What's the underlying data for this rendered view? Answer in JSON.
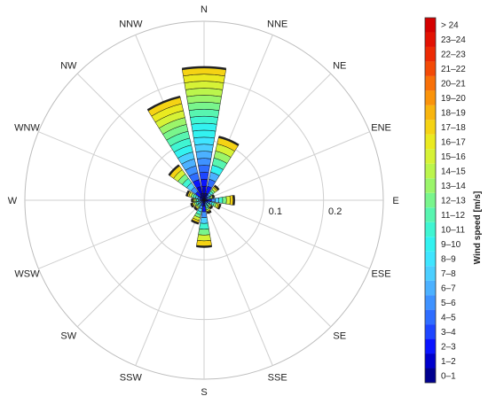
{
  "chart_data": {
    "type": "wind-rose",
    "directions": [
      "N",
      "NNE",
      "NE",
      "ENE",
      "E",
      "ESE",
      "SE",
      "SSE",
      "S",
      "SSW",
      "SW",
      "WSW",
      "W",
      "WNW",
      "NW",
      "NNW"
    ],
    "radial_ticks": [
      {
        "value": 0.1,
        "label": "0.1"
      },
      {
        "value": 0.2,
        "label": "0.2"
      }
    ],
    "radial_max": 0.3,
    "grid": true,
    "frequencies": [
      0.223,
      0.109,
      0.03,
      0.017,
      0.05,
      0.028,
      0.017,
      0.022,
      0.078,
      0.04,
      0.02,
      0.022,
      0.02,
      0.03,
      0.072,
      0.178
    ],
    "speed_bins": [
      "0–1",
      "1–2",
      "2–3",
      "3–4",
      "4–5",
      "5–6",
      "6–7",
      "7–8",
      "8–9",
      "9–10",
      "10–11",
      "11–12",
      "12–13",
      "13–14",
      "14–15",
      "15–16",
      "16–17",
      "17–18",
      "18–19",
      "19–20",
      "20–21",
      "21–22",
      "22–23",
      "23–24",
      "> 24"
    ],
    "speed_colors": [
      "#00008f",
      "#0000cc",
      "#0a14ff",
      "#1e46ff",
      "#2f6dff",
      "#3f92ff",
      "#4cb1ff",
      "#4ccfff",
      "#3fe5ff",
      "#33f2f0",
      "#40f5d2",
      "#58f5b0",
      "#79f58c",
      "#9bf56a",
      "#bbf54c",
      "#d6f236",
      "#eaea20",
      "#f5d314",
      "#f8b50e",
      "#fa930a",
      "#f87008",
      "#f34a06",
      "#ec2a04",
      "#e21203",
      "#d40000"
    ],
    "colorbar_label": "Wind speed [m/s]",
    "legend_placement": "right"
  }
}
